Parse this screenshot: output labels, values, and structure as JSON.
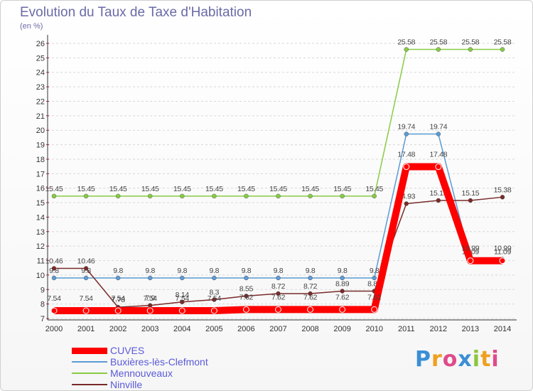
{
  "chart_data": {
    "type": "line",
    "title": "Evolution du Taux de Taxe d'Habitation",
    "ylabel": "(en %)",
    "xlabel": "",
    "x": [
      "2000",
      "2001",
      "2002",
      "2003",
      "2004",
      "2005",
      "2006",
      "2007",
      "2008",
      "2009",
      "2010",
      "2011",
      "2012",
      "2013",
      "2014"
    ],
    "ylim": [
      7,
      26
    ],
    "yticks": [
      7,
      8,
      9,
      10,
      11,
      12,
      13,
      14,
      15,
      16,
      17,
      18,
      19,
      20,
      21,
      22,
      23,
      24,
      25,
      26
    ],
    "grid": "horizontal dashed",
    "legend_position": "bottom-left",
    "series": [
      {
        "name": "CUVES",
        "color": "#ff0000",
        "values": [
          7.54,
          7.54,
          7.54,
          7.54,
          7.54,
          7.54,
          7.62,
          7.62,
          7.62,
          7.62,
          7.62,
          17.48,
          17.48,
          10.99,
          10.99
        ],
        "labels": [
          "7.54",
          "7.54",
          "7.54",
          "7.54",
          "7.54",
          "7.54",
          "7.62",
          "7.62",
          "7.62",
          "7.62",
          "7.62",
          "17.48",
          "17.48",
          "10.99",
          "10.99"
        ]
      },
      {
        "name": "Buxières-lès-Clefmont",
        "color": "#5b9bd5",
        "values": [
          9.8,
          9.8,
          9.8,
          9.8,
          9.8,
          9.8,
          9.8,
          9.8,
          9.8,
          9.8,
          9.8,
          19.74,
          19.74,
          11.09,
          11.09
        ],
        "labels": [
          "9.8",
          "9.8",
          "9.8",
          "9.8",
          "9.8",
          "9.8",
          "9.8",
          "9.8",
          "9.8",
          "9.8",
          "9.8",
          "19.74",
          "19.74",
          "11.09",
          "11.09"
        ]
      },
      {
        "name": "Mennouveaux",
        "color": "#88cc44",
        "values": [
          15.45,
          15.45,
          15.45,
          15.45,
          15.45,
          15.45,
          15.45,
          15.45,
          15.45,
          15.45,
          15.45,
          25.58,
          25.58,
          25.58,
          25.58
        ],
        "labels": [
          "15.45",
          "15.45",
          "15.45",
          "15.45",
          "15.45",
          "15.45",
          "15.45",
          "15.45",
          "15.45",
          "15.45",
          "15.45",
          "25.58",
          "25.58",
          "25.58",
          "25.58"
        ]
      },
      {
        "name": "Ninville",
        "color": "#7a2a2a",
        "values": [
          10.46,
          10.46,
          7.78,
          7.9,
          8.14,
          8.3,
          8.55,
          8.72,
          8.72,
          8.89,
          8.89,
          14.93,
          15.15,
          15.15,
          15.38
        ],
        "labels": [
          "10.46",
          "10.46",
          "7.78",
          "7.9",
          "8.14",
          "8.3",
          "8.55",
          "8.72",
          "8.72",
          "8.89",
          "8.89",
          "14.93",
          "15.15",
          "15.15",
          "15.38"
        ]
      }
    ]
  },
  "logo": {
    "letters": [
      "P",
      "r",
      "o",
      "x",
      "i",
      "t",
      "i"
    ],
    "colors": [
      "#3a8fd6",
      "#f0a020",
      "#e04a8a",
      "#3a8fd6",
      "#8cc63f",
      "#f0a020",
      "#e04a8a"
    ]
  }
}
